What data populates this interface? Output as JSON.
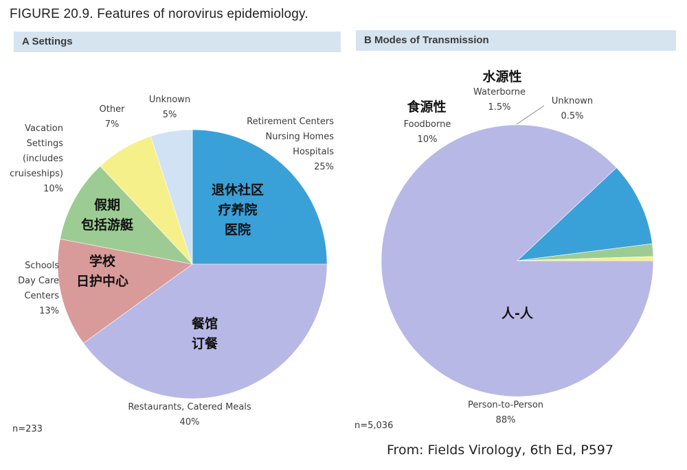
{
  "figure_title": "FIGURE 20.9. Features of norovirus epidemiology.",
  "source": "From: Fields Virology, 6th Ed, P597",
  "colors": {
    "header_bg": "#d6e4f0",
    "blue": "#3aa0d8",
    "lavender": "#b8b8e6",
    "rose": "#d99a9a",
    "green": "#9ccc94",
    "yellow": "#f6f08a",
    "light_blue": "#d0e2f4"
  },
  "chart_data": [
    {
      "type": "pie",
      "panel_label": "A Settings",
      "n_label": "n=233",
      "slices": [
        {
          "key": "retirement",
          "label_lines": [
            "Retirement Centers",
            "Nursing Homes",
            "Hospitals",
            "25%"
          ],
          "cn_lines": [
            "退休社区",
            "疗养院",
            "医院"
          ],
          "value": 25,
          "color": "#3aa0d8"
        },
        {
          "key": "restaurants",
          "label_lines": [
            "Restaurants, Catered Meals",
            "40%"
          ],
          "cn_lines": [
            "餐馆",
            "订餐"
          ],
          "value": 40,
          "color": "#b8b8e6"
        },
        {
          "key": "schools",
          "label_lines": [
            "Schools",
            "Day Care",
            "Centers",
            "13%"
          ],
          "cn_lines": [
            "学校",
            "日护中心"
          ],
          "value": 13,
          "color": "#d99a9a"
        },
        {
          "key": "vacation",
          "label_lines": [
            "Vacation",
            "Settings",
            "(includes",
            "cruiseships)",
            "10%"
          ],
          "cn_lines": [
            "假期",
            "包括游艇"
          ],
          "value": 10,
          "color": "#9ccc94"
        },
        {
          "key": "other",
          "label_lines": [
            "Other",
            "7%"
          ],
          "cn_lines": [],
          "value": 7,
          "color": "#f6f08a"
        },
        {
          "key": "unknown",
          "label_lines": [
            "Unknown",
            "5%"
          ],
          "cn_lines": [],
          "value": 5,
          "color": "#d0e2f4"
        }
      ]
    },
    {
      "type": "pie",
      "panel_label": "B Modes of Transmission",
      "n_label": "n=5,036",
      "slices": [
        {
          "key": "person",
          "label_lines": [
            "Person-to-Person",
            "88%"
          ],
          "cn_lines": [
            "人-人"
          ],
          "value": 88,
          "color": "#b8b8e6"
        },
        {
          "key": "foodborne",
          "label_lines": [
            "Foodborne",
            "10%"
          ],
          "cn_lines": [
            "食源性"
          ],
          "value": 10,
          "color": "#3aa0d8"
        },
        {
          "key": "waterborne",
          "label_lines": [
            "Waterborne",
            "1.5%"
          ],
          "cn_lines": [
            "水源性"
          ],
          "value": 1.5,
          "color": "#9ccc94"
        },
        {
          "key": "unknown",
          "label_lines": [
            "Unknown",
            "0.5%"
          ],
          "cn_lines": [],
          "value": 0.5,
          "color": "#f6f08a"
        }
      ]
    }
  ]
}
